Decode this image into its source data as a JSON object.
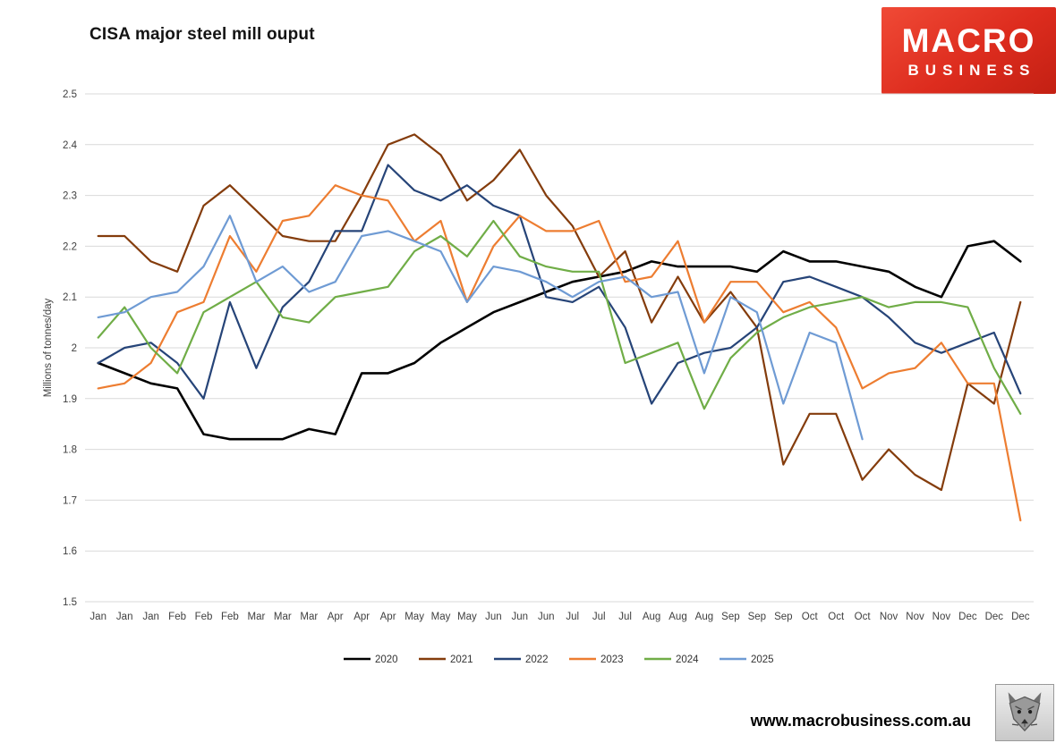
{
  "title": "CISA major steel mill ouput",
  "logo": {
    "line1": "MACRO",
    "line2": "BUSINESS",
    "bg_color": "#DD2C1E"
  },
  "footer": {
    "url": "www.macrobusiness.com.au"
  },
  "chart_data": {
    "type": "line",
    "title": "CISA major steel mill ouput",
    "xlabel": "",
    "ylabel": "Millions of tonnes/day",
    "ylim": [
      1.5,
      2.5
    ],
    "ytick_step": 0.1,
    "ytick_labels": [
      "1.5",
      "1.6",
      "1.7",
      "1.8",
      "1.9",
      "2",
      "2.1",
      "2.2",
      "2.3",
      "2.4",
      "2.5"
    ],
    "grid": true,
    "legend_position": "bottom",
    "categories": [
      "Jan",
      "Jan",
      "Jan",
      "Feb",
      "Feb",
      "Feb",
      "Mar",
      "Mar",
      "Mar",
      "Apr",
      "Apr",
      "Apr",
      "May",
      "May",
      "May",
      "Jun",
      "Jun",
      "Jun",
      "Jul",
      "Jul",
      "Jul",
      "Aug",
      "Aug",
      "Aug",
      "Sep",
      "Sep",
      "Sep",
      "Oct",
      "Oct",
      "Oct",
      "Nov",
      "Nov",
      "Nov",
      "Dec",
      "Dec",
      "Dec"
    ],
    "series": [
      {
        "name": "2020",
        "color": "#000000",
        "values": [
          1.97,
          1.95,
          1.93,
          1.92,
          1.83,
          1.82,
          1.82,
          1.82,
          1.84,
          1.83,
          1.95,
          1.95,
          1.97,
          2.01,
          2.04,
          2.07,
          2.09,
          2.11,
          2.13,
          2.14,
          2.15,
          2.17,
          2.16,
          2.16,
          2.16,
          2.15,
          2.19,
          2.17,
          2.17,
          2.16,
          2.15,
          2.12,
          2.1,
          2.2,
          2.21,
          2.17
        ]
      },
      {
        "name": "2021",
        "color": "#843C0C",
        "values": [
          2.22,
          2.22,
          2.17,
          2.15,
          2.28,
          2.32,
          2.27,
          2.22,
          2.21,
          2.21,
          2.3,
          2.4,
          2.42,
          2.38,
          2.29,
          2.33,
          2.39,
          2.3,
          2.24,
          2.14,
          2.19,
          2.05,
          2.14,
          2.05,
          2.11,
          2.04,
          1.77,
          1.87,
          1.87,
          1.74,
          1.8,
          1.75,
          1.72,
          1.93,
          1.89,
          2.09
        ]
      },
      {
        "name": "2022",
        "color": "#264478",
        "values": [
          1.97,
          2.0,
          2.01,
          1.97,
          1.9,
          2.09,
          1.96,
          2.08,
          2.13,
          2.23,
          2.23,
          2.36,
          2.31,
          2.29,
          2.32,
          2.28,
          2.26,
          2.1,
          2.09,
          2.12,
          2.04,
          1.89,
          1.97,
          1.99,
          2.0,
          2.04,
          2.13,
          2.14,
          2.12,
          2.1,
          2.06,
          2.01,
          1.99,
          2.01,
          2.03,
          1.91
        ]
      },
      {
        "name": "2023",
        "color": "#ED7D31",
        "values": [
          1.92,
          1.93,
          1.97,
          2.07,
          2.09,
          2.22,
          2.15,
          2.25,
          2.26,
          2.32,
          2.3,
          2.29,
          2.21,
          2.25,
          2.09,
          2.2,
          2.26,
          2.23,
          2.23,
          2.25,
          2.13,
          2.14,
          2.21,
          2.05,
          2.13,
          2.13,
          2.07,
          2.09,
          2.04,
          1.92,
          1.95,
          1.96,
          2.01,
          1.93,
          1.93,
          1.66
        ]
      },
      {
        "name": "2024",
        "color": "#70AD47",
        "values": [
          2.02,
          2.08,
          2.0,
          1.95,
          2.07,
          2.1,
          2.13,
          2.06,
          2.05,
          2.1,
          2.11,
          2.12,
          2.19,
          2.22,
          2.18,
          2.25,
          2.18,
          2.16,
          2.15,
          2.15,
          1.97,
          1.99,
          2.01,
          1.88,
          1.98,
          2.03,
          2.06,
          2.08,
          2.09,
          2.1,
          2.08,
          2.09,
          2.09,
          2.08,
          1.96,
          1.87
        ]
      },
      {
        "name": "2025",
        "color": "#6F9BD4",
        "values": [
          2.06,
          2.07,
          2.1,
          2.11,
          2.16,
          2.26,
          2.13,
          2.16,
          2.11,
          2.13,
          2.22,
          2.23,
          2.21,
          2.19,
          2.09,
          2.16,
          2.15,
          2.13,
          2.1,
          2.13,
          2.14,
          2.1,
          2.11,
          1.95,
          2.1,
          2.07,
          1.89,
          2.03,
          2.01,
          1.82,
          null,
          null,
          null,
          null,
          null,
          null
        ]
      }
    ]
  }
}
